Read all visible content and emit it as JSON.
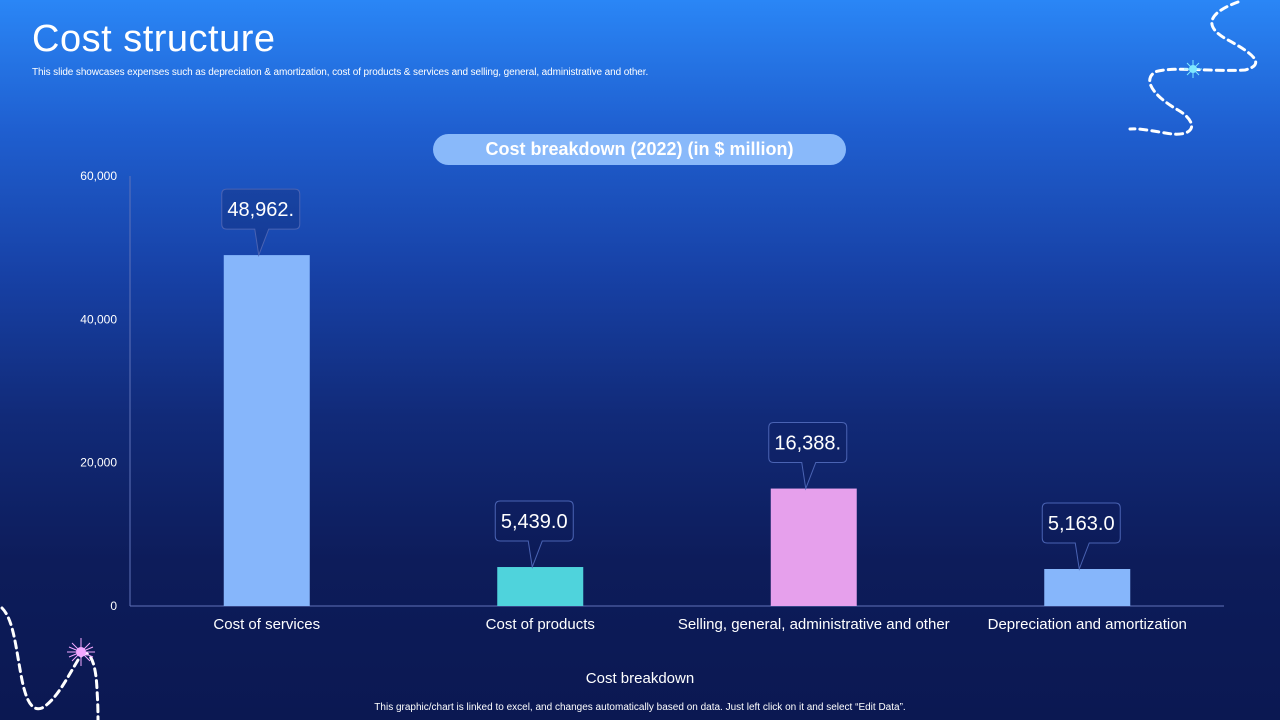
{
  "slide": {
    "title": "Cost structure",
    "subtitle": "This slide showcases expenses such as depreciation & amortization, cost of products & services and selling, general, administrative and other.",
    "footer": "This graphic/chart is linked to excel, and changes automatically based on data. Just left click on it and select “Edit Data”."
  },
  "chart_data": {
    "type": "bar",
    "title": "Cost breakdown (2022) (in $ million)",
    "xlabel": "Cost breakdown",
    "ylabel": "",
    "categories": [
      "Cost of services",
      "Cost of products",
      "Selling, general, administrative and other",
      "Depreciation and amortization"
    ],
    "values": [
      48962,
      5439,
      16388,
      5163
    ],
    "data_labels": [
      "48,962.",
      "5,439.0",
      "16,388.",
      "5,163.0"
    ],
    "ylim": [
      0,
      60000
    ],
    "yticks": [
      0,
      20000,
      40000,
      60000
    ],
    "ytick_labels": [
      "0",
      "20,000",
      "40,000",
      "60,000"
    ],
    "bar_colors": [
      "#86b6fb",
      "#4fd3dc",
      "#e6a0ec",
      "#86b6fb"
    ],
    "grid": false,
    "legend": "none"
  }
}
